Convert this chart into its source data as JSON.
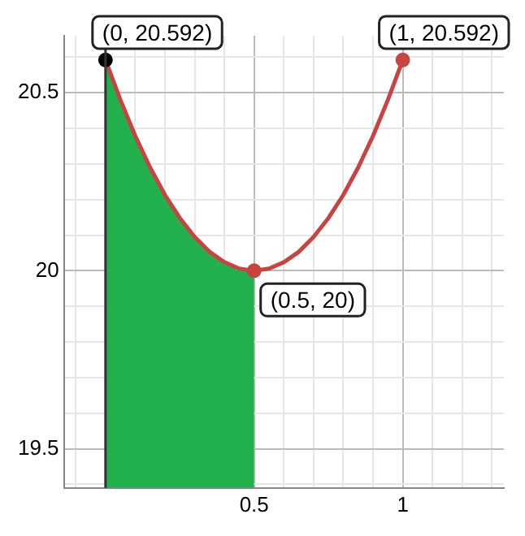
{
  "chart_data": {
    "type": "line",
    "xlim": [
      -0.14,
      1.34
    ],
    "ylim": [
      19.39,
      20.66
    ],
    "xticks": [
      {
        "value": -0.1,
        "label": null
      },
      {
        "value": 0,
        "label": null
      },
      {
        "value": 0.1,
        "label": null
      },
      {
        "value": 0.2,
        "label": null
      },
      {
        "value": 0.3,
        "label": null
      },
      {
        "value": 0.4,
        "label": null
      },
      0.5,
      {
        "value": 0.6,
        "label": null
      },
      {
        "value": 0.7,
        "label": null
      },
      {
        "value": 0.8,
        "label": null
      },
      {
        "value": 0.9,
        "label": null
      },
      1,
      {
        "value": 1.1,
        "label": null
      },
      {
        "value": 1.2,
        "label": null
      },
      {
        "value": 1.3,
        "label": null
      }
    ],
    "yticks": [
      {
        "value": 19.4,
        "label": null
      },
      19.5,
      {
        "value": 19.6,
        "label": null
      },
      {
        "value": 19.7,
        "label": null
      },
      {
        "value": 19.8,
        "label": null
      },
      {
        "value": 19.9,
        "label": null
      },
      20,
      {
        "value": 20.1,
        "label": null
      },
      {
        "value": 20.2,
        "label": null
      },
      {
        "value": 20.3,
        "label": null
      },
      {
        "value": 20.4,
        "label": null
      },
      20.5,
      {
        "value": 20.6,
        "label": null
      }
    ],
    "grid": true,
    "legend": false,
    "marker": "none",
    "line_style": "solid",
    "series": [
      {
        "type": "area",
        "color": "#22b14c",
        "x": [
          0,
          0.05,
          0.1,
          0.15,
          0.2,
          0.25,
          0.3,
          0.35,
          0.4,
          0.45,
          0.5
        ],
        "values": [
          20.592,
          20.48,
          20.379,
          20.29,
          20.213,
          20.148,
          20.095,
          20.053,
          20.024,
          20.006,
          20
        ]
      },
      {
        "color": "#c74440",
        "x": [
          0,
          0.05,
          0.1,
          0.15,
          0.2,
          0.25,
          0.3,
          0.35,
          0.4,
          0.45,
          0.5,
          0.55,
          0.6,
          0.65,
          0.7,
          0.75,
          0.8,
          0.85,
          0.9,
          0.95,
          1
        ],
        "values": [
          20.592,
          20.48,
          20.379,
          20.29,
          20.213,
          20.148,
          20.095,
          20.053,
          20.024,
          20.006,
          20,
          20.006,
          20.024,
          20.053,
          20.095,
          20.148,
          20.213,
          20.29,
          20.379,
          20.48,
          20.592
        ]
      },
      {
        "type": "scatter",
        "marker": "circle",
        "colors": [
          "#000000",
          "#c74440",
          "#c74440"
        ],
        "x": [
          0,
          0.5,
          1
        ],
        "values": [
          20.592,
          20,
          20.592
        ]
      }
    ],
    "annotations": [
      {
        "text": "(0, 20.592)",
        "x": 0,
        "y": 20.592
      },
      {
        "text": "(0.5, 20)",
        "x": 0.5,
        "y": 20
      },
      {
        "text": "(1, 20.592)",
        "x": 1,
        "y": 20.592
      }
    ]
  }
}
